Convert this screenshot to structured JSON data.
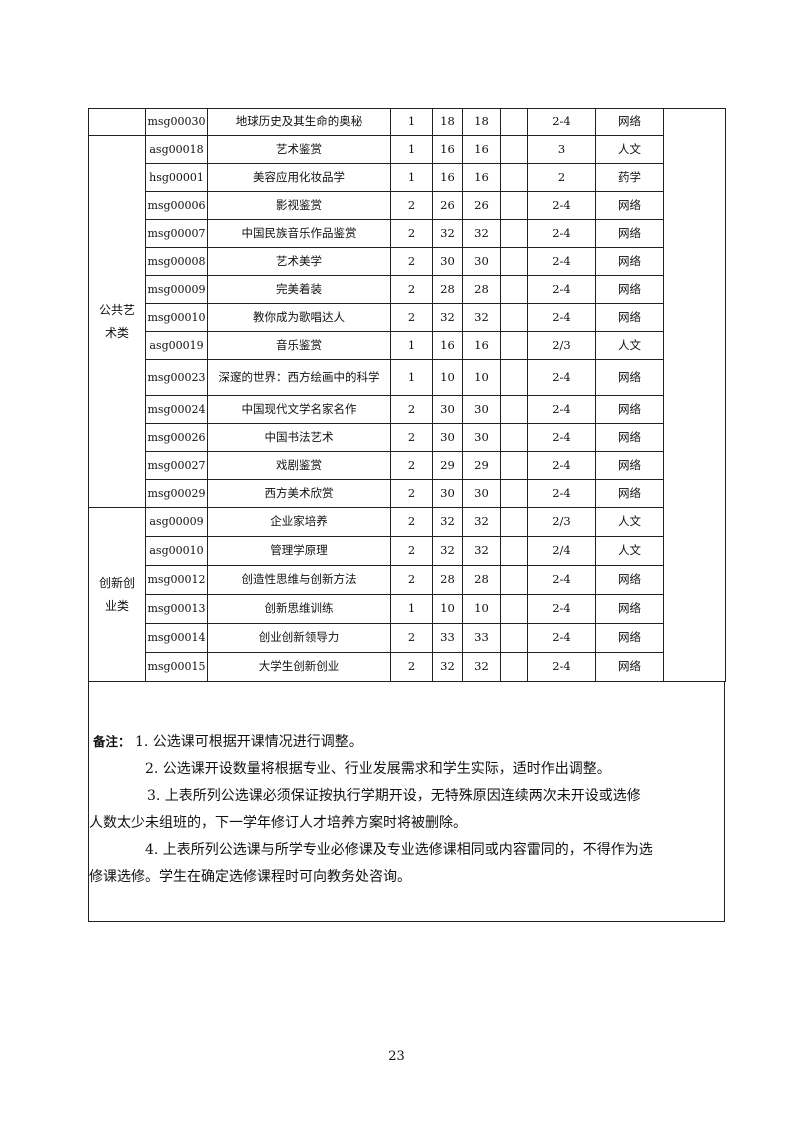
{
  "rows": [
    {
      "code": "msg00030",
      "name": "地球历史及其生命的奥秘",
      "credit": "1",
      "hours": "18",
      "h2": "18",
      "h3": "",
      "term": "2-4",
      "type": "网络"
    },
    {
      "code": "asg00018",
      "name": "艺术鉴赏",
      "credit": "1",
      "hours": "16",
      "h2": "16",
      "h3": "",
      "term": "3",
      "type": "人文"
    },
    {
      "code": "hsg00001",
      "name": "美容应用化妆品学",
      "credit": "1",
      "hours": "16",
      "h2": "16",
      "h3": "",
      "term": "2",
      "type": "药学"
    },
    {
      "code": "msg00006",
      "name": "影视鉴赏",
      "credit": "2",
      "hours": "26",
      "h2": "26",
      "h3": "",
      "term": "2-4",
      "type": "网络"
    },
    {
      "code": "msg00007",
      "name": "中国民族音乐作品鉴赏",
      "credit": "2",
      "hours": "32",
      "h2": "32",
      "h3": "",
      "term": "2-4",
      "type": "网络"
    },
    {
      "code": "msg00008",
      "name": "艺术美学",
      "credit": "2",
      "hours": "30",
      "h2": "30",
      "h3": "",
      "term": "2-4",
      "type": "网络"
    },
    {
      "code": "msg00009",
      "name": "完美着装",
      "credit": "2",
      "hours": "28",
      "h2": "28",
      "h3": "",
      "term": "2-4",
      "type": "网络"
    },
    {
      "code": "msg00010",
      "name": "教你成为歌唱达人",
      "credit": "2",
      "hours": "32",
      "h2": "32",
      "h3": "",
      "term": "2-4",
      "type": "网络"
    },
    {
      "code": "asg00019",
      "name": "音乐鉴赏",
      "credit": "1",
      "hours": "16",
      "h2": "16",
      "h3": "",
      "term": "2/3",
      "type": "人文"
    },
    {
      "code": "msg00023",
      "name": "深邃的世界：西方绘画中的科学",
      "credit": "1",
      "hours": "10",
      "h2": "10",
      "h3": "",
      "term": "2-4",
      "type": "网络"
    },
    {
      "code": "msg00024",
      "name": "中国现代文学名家名作",
      "credit": "2",
      "hours": "30",
      "h2": "30",
      "h3": "",
      "term": "2-4",
      "type": "网络"
    },
    {
      "code": "msg00026",
      "name": "中国书法艺术",
      "credit": "2",
      "hours": "30",
      "h2": "30",
      "h3": "",
      "term": "2-4",
      "type": "网络"
    },
    {
      "code": "msg00027",
      "name": "戏剧鉴赏",
      "credit": "2",
      "hours": "29",
      "h2": "29",
      "h3": "",
      "term": "2-4",
      "type": "网络"
    },
    {
      "code": "msg00029",
      "name": "西方美术欣赏",
      "credit": "2",
      "hours": "30",
      "h2": "30",
      "h3": "",
      "term": "2-4",
      "type": "网络"
    },
    {
      "code": "asg00009",
      "name": "企业家培养",
      "credit": "2",
      "hours": "32",
      "h2": "32",
      "h3": "",
      "term": "2/3",
      "type": "人文"
    },
    {
      "code": "asg00010",
      "name": "管理学原理",
      "credit": "2",
      "hours": "32",
      "h2": "32",
      "h3": "",
      "term": "2/4",
      "type": "人文"
    },
    {
      "code": "msg00012",
      "name": "创造性思维与创新方法",
      "credit": "2",
      "hours": "28",
      "h2": "28",
      "h3": "",
      "term": "2-4",
      "type": "网络"
    },
    {
      "code": "msg00013",
      "name": "创新思维训练",
      "credit": "1",
      "hours": "10",
      "h2": "10",
      "h3": "",
      "term": "2-4",
      "type": "网络"
    },
    {
      "code": "msg00014",
      "name": "创业创新领导力",
      "credit": "2",
      "hours": "33",
      "h2": "33",
      "h3": "",
      "term": "2-4",
      "type": "网络"
    },
    {
      "code": "msg00015",
      "name": "大学生创新创业",
      "credit": "2",
      "hours": "32",
      "h2": "32",
      "h3": "",
      "term": "2-4",
      "type": "网络"
    }
  ],
  "categories": {
    "art": "公共艺\n术类",
    "innovation": "创新创\n业类"
  },
  "notes": {
    "label": "备注：",
    "n1": "1. 公选课可根据开课情况进行调整。",
    "n2": "2. 公选课开设数量将根据专业、行业发展需求和学生实际，适时作出调整。",
    "n3a": "3. 上表所列公选课必须保证按执行学期开设，无特殊原因连续两次未开设或选修",
    "n3b": "人数太少未组班的，下一学年修订人才培养方案时将被删除。",
    "n4a": "4. 上表所列公选课与所学专业必修课及专业选修课相同或内容雷同的，不得作为选",
    "n4b": "修课选修。学生在确定选修课程时可向教务处咨询。"
  },
  "page_number": "23"
}
